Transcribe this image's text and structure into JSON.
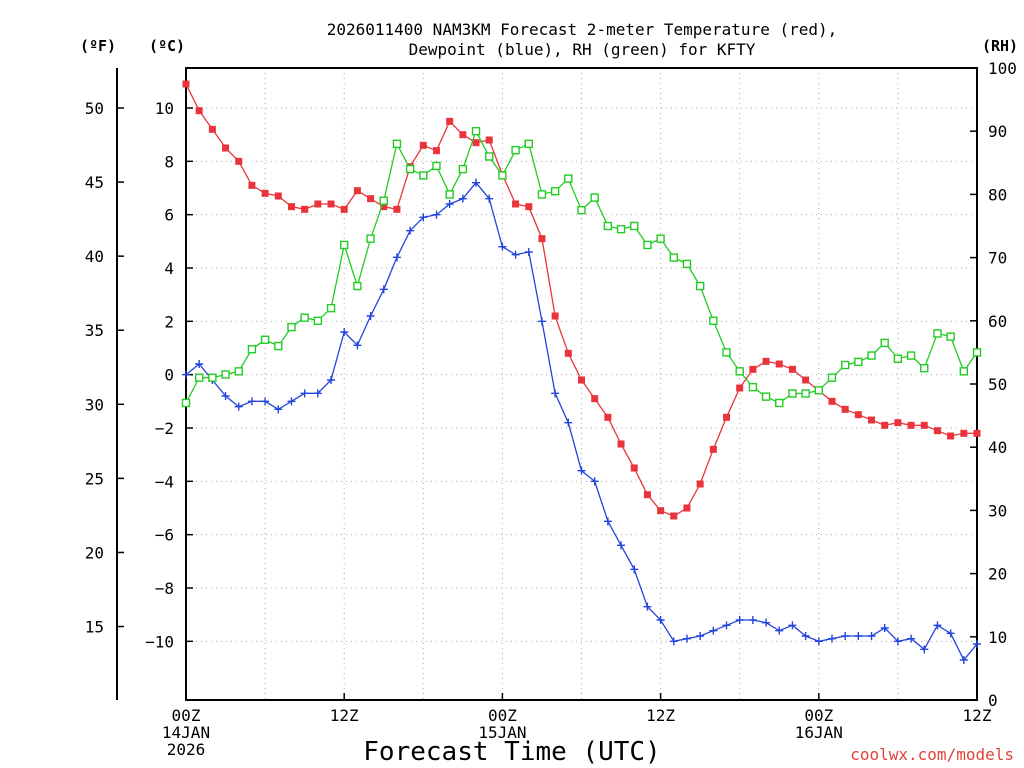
{
  "chart_data": {
    "type": "line",
    "title_line1": "2026011400 NAM3KM Forecast 2-meter Temperature (red),",
    "title_line2": "Dewpoint (blue), RH (green) for KFTY",
    "xlabel": "Forecast Time (UTC)",
    "credit": "coolwx.com/models",
    "units": {
      "fahrenheit": "(ºF)",
      "celsius": "(ºC)",
      "rh": "(RH)"
    },
    "x_range_hours": [
      0,
      60
    ],
    "y_celsius_range": [
      -12.2,
      11.5
    ],
    "y_rh_range": [
      0,
      100
    ],
    "x_ticks": [
      {
        "hour": 0,
        "lines": [
          "00Z",
          "14JAN",
          "2026"
        ]
      },
      {
        "hour": 12,
        "lines": [
          "12Z"
        ]
      },
      {
        "hour": 24,
        "lines": [
          "00Z",
          "15JAN"
        ]
      },
      {
        "hour": 36,
        "lines": [
          "12Z"
        ]
      },
      {
        "hour": 48,
        "lines": [
          "00Z",
          "16JAN"
        ]
      },
      {
        "hour": 60,
        "lines": [
          "12Z"
        ]
      }
    ],
    "celsius_ticks": [
      10,
      8,
      6,
      4,
      2,
      0,
      -2,
      -4,
      -6,
      -8,
      -10
    ],
    "celsius_tick_labels": [
      "10",
      "8",
      "6",
      "4",
      "2",
      "0",
      "−2",
      "−4",
      "−6",
      "−8",
      "−10"
    ],
    "fahrenheit_ticks": [
      50,
      45,
      40,
      35,
      30,
      25,
      20,
      15
    ],
    "fahrenheit_tick_labels": [
      "50",
      "45",
      "40",
      "35",
      "30",
      "25",
      "20",
      "15"
    ],
    "rh_ticks": [
      100,
      90,
      80,
      70,
      60,
      50,
      40,
      30,
      20,
      10,
      0
    ],
    "rh_tick_labels": [
      "100",
      "90",
      "80",
      "70",
      "60",
      "50",
      "40",
      "30",
      "20",
      "10",
      "0"
    ],
    "series": [
      {
        "name": "Temperature",
        "axis": "celsius",
        "color": "#e8343a",
        "marker": "filled-square",
        "values": [
          10.9,
          9.9,
          9.2,
          8.5,
          8.0,
          7.1,
          6.8,
          6.7,
          6.3,
          6.2,
          6.4,
          6.4,
          6.2,
          6.9,
          6.6,
          6.3,
          6.2,
          7.8,
          8.6,
          8.4,
          9.5,
          9.0,
          8.7,
          8.8,
          7.5,
          6.4,
          6.3,
          5.1,
          2.2,
          0.8,
          -0.2,
          -0.9,
          -1.6,
          -2.6,
          -3.5,
          -4.5,
          -5.1,
          -5.3,
          -5.0,
          -4.1,
          -2.8,
          -1.6,
          -0.5,
          0.2,
          0.5,
          0.4,
          0.2,
          -0.2,
          -0.6,
          -1.0,
          -1.3,
          -1.5,
          -1.7,
          -1.9,
          -1.8,
          -1.9,
          -1.9,
          -2.1,
          -2.3,
          -2.2,
          -2.2
        ]
      },
      {
        "name": "Dewpoint",
        "axis": "celsius",
        "color": "#2244dd",
        "marker": "plus",
        "values": [
          0.0,
          0.4,
          -0.2,
          -0.8,
          -1.2,
          -1.0,
          -1.0,
          -1.3,
          -1.0,
          -0.7,
          -0.7,
          -0.2,
          1.6,
          1.1,
          2.2,
          3.2,
          4.4,
          5.4,
          5.9,
          6.0,
          6.4,
          6.6,
          7.2,
          6.6,
          4.8,
          4.5,
          4.6,
          2.0,
          -0.7,
          -1.8,
          -3.6,
          -4.0,
          -5.5,
          -6.4,
          -7.3,
          -8.7,
          -9.2,
          -10.0,
          -9.9,
          -9.8,
          -9.6,
          -9.4,
          -9.2,
          -9.2,
          -9.3,
          -9.6,
          -9.4,
          -9.8,
          -10.0,
          -9.9,
          -9.8,
          -9.8,
          -9.8,
          -9.5,
          -10.0,
          -9.9,
          -10.3,
          -9.4,
          -9.7,
          -10.7,
          -10.1
        ]
      },
      {
        "name": "RH",
        "axis": "rh",
        "color": "#22cc22",
        "marker": "hollow-square",
        "values": [
          47,
          51,
          51,
          51.5,
          52,
          55.5,
          57,
          56,
          59,
          60.5,
          60,
          62,
          72,
          65.5,
          73,
          79,
          88,
          84,
          83,
          84.5,
          80,
          84,
          90,
          86,
          83,
          87,
          88,
          80,
          80.5,
          82.5,
          77.5,
          79.5,
          75,
          74.5,
          75,
          72,
          73,
          70,
          69,
          65.5,
          60,
          55,
          52,
          49.5,
          48,
          47,
          48.5,
          48.5,
          49,
          51,
          53,
          53.5,
          54.5,
          56.5,
          54,
          54.5,
          52.5,
          58,
          57.5,
          52,
          55
        ]
      }
    ]
  }
}
